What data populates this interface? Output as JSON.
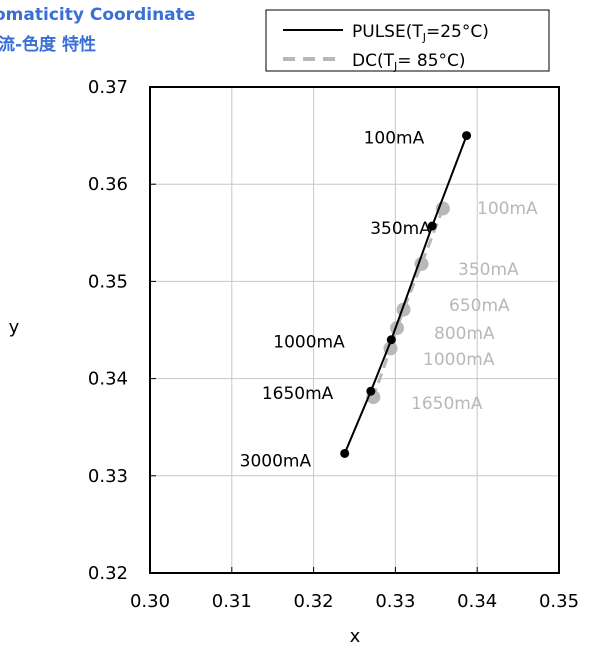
{
  "chart_data": {
    "type": "scatter",
    "title_line1": "omaticity Coordinate",
    "title_line2": "流-色度 特性",
    "xlabel": "x",
    "ylabel": "y",
    "xlim": [
      0.3,
      0.35
    ],
    "ylim": [
      0.32,
      0.37
    ],
    "x_ticks": [
      "0.30",
      "0.31",
      "0.32",
      "0.33",
      "0.34",
      "0.35"
    ],
    "y_ticks": [
      "0.37",
      "0.36",
      "0.35",
      "0.34",
      "0.33",
      "0.32"
    ],
    "grid": true,
    "legend_placement": "top-right",
    "series": [
      {
        "name": "PULSE",
        "name_sub": "J",
        "name_tail": "=25°C)",
        "name_prefix": "PULSE(T",
        "color": "#000000",
        "style": "solid",
        "points": [
          {
            "label": "100mA",
            "x": 0.3387,
            "y": 0.365
          },
          {
            "label": "350mA",
            "x": 0.3345,
            "y": 0.3557
          },
          {
            "label": "1000mA",
            "x": 0.3295,
            "y": 0.344
          },
          {
            "label": "1650mA",
            "x": 0.327,
            "y": 0.3387
          },
          {
            "label": "3000mA",
            "x": 0.3238,
            "y": 0.3323
          }
        ]
      },
      {
        "name": "DC",
        "name_prefix": "DC(T",
        "name_sub": "J",
        "name_tail": "= 85°C)",
        "color": "#b8b8b8",
        "style": "dashed",
        "points": [
          {
            "label": "100mA",
            "x": 0.3358,
            "y": 0.3575
          },
          {
            "label": "350mA",
            "x": 0.3332,
            "y": 0.3518
          },
          {
            "label": "650mA",
            "x": 0.331,
            "y": 0.3471
          },
          {
            "label": "800mA",
            "x": 0.3302,
            "y": 0.3452
          },
          {
            "label": "1000mA",
            "x": 0.3294,
            "y": 0.3431
          },
          {
            "label": "1650mA",
            "x": 0.3273,
            "y": 0.3381
          }
        ]
      }
    ]
  }
}
